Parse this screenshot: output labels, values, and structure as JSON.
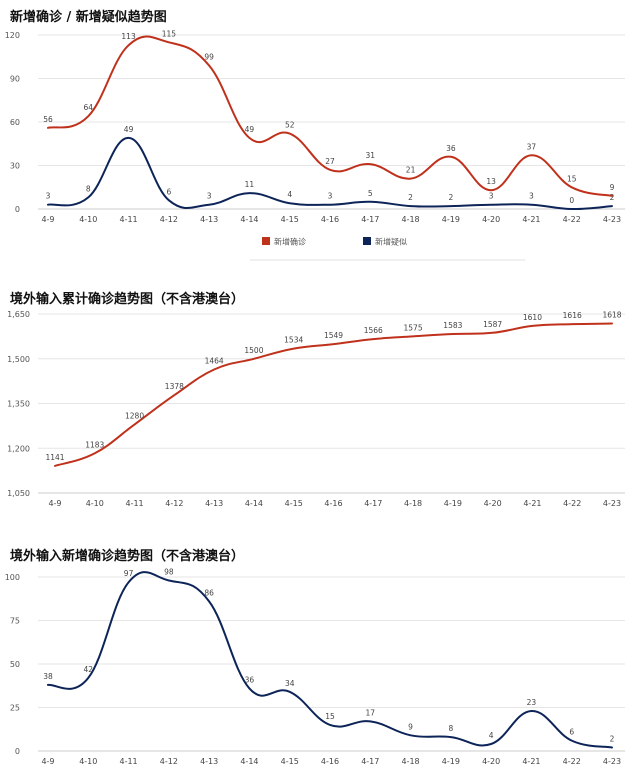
{
  "colors": {
    "red": "#c0311c",
    "navy": "#0d2458",
    "grid": "#e6e6e6",
    "axis": "#cccccc"
  },
  "charts": [
    {
      "title": "新增确诊 / 新增疑似趋势图"
    },
    {
      "title": "境外输入累计确诊趋势图（不含港澳台）"
    },
    {
      "title": "境外输入新增确诊趋势图（不含港澳台）"
    }
  ],
  "chart_data": [
    {
      "type": "line",
      "title": "新增确诊 / 新增疑似趋势图",
      "categories": [
        "4-9",
        "4-10",
        "4-11",
        "4-12",
        "4-13",
        "4-14",
        "4-15",
        "4-16",
        "4-17",
        "4-18",
        "4-19",
        "4-20",
        "4-21",
        "4-22",
        "4-23"
      ],
      "series": [
        {
          "name": "新增确诊",
          "color": "#c0311c",
          "values": [
            56,
            64,
            113,
            115,
            99,
            49,
            52,
            27,
            31,
            21,
            36,
            13,
            37,
            15,
            9
          ]
        },
        {
          "name": "新增疑似",
          "color": "#0d2458",
          "values": [
            3,
            8,
            49,
            6,
            3,
            11,
            4,
            3,
            5,
            2,
            2,
            3,
            3,
            0,
            2
          ]
        }
      ],
      "yticks": [
        0,
        30,
        60,
        90,
        120
      ],
      "ylim": [
        0,
        120
      ],
      "grid": true,
      "legend": "bottom-center"
    },
    {
      "type": "line",
      "title": "境外输入累计确诊趋势图（不含港澳台）",
      "categories": [
        "4-9",
        "4-10",
        "4-11",
        "4-12",
        "4-13",
        "4-14",
        "4-15",
        "4-16",
        "4-17",
        "4-18",
        "4-19",
        "4-20",
        "4-21",
        "4-22",
        "4-23"
      ],
      "series": [
        {
          "color": "#c0311c",
          "values": [
            1141,
            1183,
            1280,
            1378,
            1464,
            1500,
            1534,
            1549,
            1566,
            1575,
            1583,
            1587,
            1610,
            1616,
            1618
          ]
        }
      ],
      "yticks": [
        1050,
        1200,
        1350,
        1500,
        1650
      ],
      "ytick_labels": [
        "1,050",
        "1,200",
        "1,350",
        "1,500",
        "1,650"
      ],
      "ylim": [
        1050,
        1650
      ],
      "grid": true
    },
    {
      "type": "line",
      "title": "境外输入新增确诊趋势图（不含港澳台）",
      "categories": [
        "4-9",
        "4-10",
        "4-11",
        "4-12",
        "4-13",
        "4-14",
        "4-15",
        "4-16",
        "4-17",
        "4-18",
        "4-19",
        "4-20",
        "4-21",
        "4-22",
        "4-23"
      ],
      "series": [
        {
          "color": "#0d2458",
          "values": [
            38,
            42,
            97,
            98,
            86,
            36,
            34,
            15,
            17,
            9,
            8,
            4,
            23,
            6,
            2
          ]
        }
      ],
      "yticks": [
        0,
        25,
        50,
        75,
        100
      ],
      "ylim": [
        0,
        100
      ],
      "grid": true
    }
  ]
}
